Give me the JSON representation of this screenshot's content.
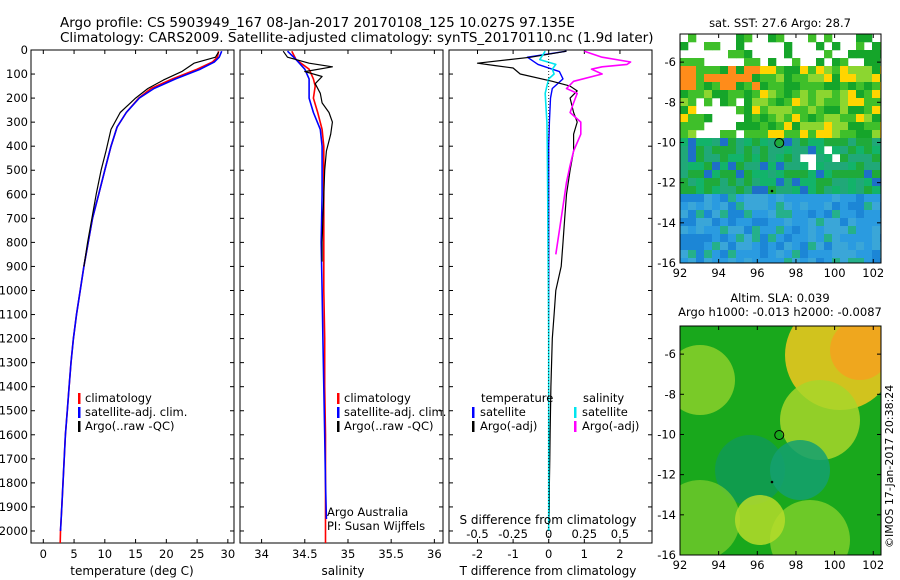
{
  "header": {
    "line1": "Argo profile: CS 5903949_167 08-Jan-2017 20170108_125 10.027S 97.135E",
    "line2": "Climatology: CARS2009. Satellite-adjusted climatology: synTS_20170110.nc (1.9d later)"
  },
  "colors": {
    "climatology": "#ff0000",
    "satellite_adj": "#0000ff",
    "argo": "#000000",
    "salinity_satellite": "#00e5ee",
    "salinity_argo": "#ff00ff"
  },
  "icons": {
    "argo_position_marker": "circle-marker-icon"
  },
  "chart_data": [
    {
      "type": "line",
      "id": "temperature",
      "xlabel": "temperature (deg C)",
      "xlim": [
        -2,
        31
      ],
      "xticks": [
        0,
        5,
        10,
        15,
        20,
        25,
        30
      ],
      "ylim": [
        0,
        2050
      ],
      "yinvert": true,
      "yticks": [
        0,
        100,
        200,
        300,
        400,
        500,
        600,
        700,
        800,
        900,
        1000,
        1100,
        1200,
        1300,
        1400,
        1500,
        1600,
        1700,
        1800,
        1900,
        2000
      ],
      "legend": [
        "climatology",
        "satellite-adj. clim.",
        "Argo(..raw -QC)"
      ],
      "series": [
        {
          "name": "climatology",
          "color": "#ff0000",
          "width": 1.6,
          "points": [
            [
              28.5,
              5
            ],
            [
              28.3,
              30
            ],
            [
              27.5,
              50
            ],
            [
              25,
              80
            ],
            [
              21,
              120
            ],
            [
              17.5,
              160
            ],
            [
              15.5,
              200
            ],
            [
              13.5,
              260
            ],
            [
              12,
              320
            ],
            [
              11,
              400
            ],
            [
              10,
              500
            ],
            [
              9,
              600
            ],
            [
              8,
              700
            ],
            [
              7.3,
              800
            ],
            [
              6.6,
              900
            ],
            [
              6,
              1000
            ],
            [
              5.4,
              1100
            ],
            [
              4.9,
              1200
            ],
            [
              4.5,
              1300
            ],
            [
              4.2,
              1400
            ],
            [
              3.9,
              1500
            ],
            [
              3.6,
              1600
            ],
            [
              3.4,
              1700
            ],
            [
              3.2,
              1800
            ],
            [
              3,
              1900
            ],
            [
              2.8,
              2000
            ],
            [
              2.75,
              2050
            ]
          ]
        },
        {
          "name": "satellite-adj. clim.",
          "color": "#0000ff",
          "width": 1.6,
          "points": [
            [
              29,
              5
            ],
            [
              28.6,
              30
            ],
            [
              27.8,
              50
            ],
            [
              25.5,
              80
            ],
            [
              21.5,
              120
            ],
            [
              18,
              160
            ],
            [
              15.6,
              200
            ],
            [
              13.5,
              260
            ],
            [
              12,
              320
            ],
            [
              11,
              400
            ],
            [
              10,
              500
            ],
            [
              9,
              600
            ],
            [
              8,
              700
            ],
            [
              7.3,
              800
            ],
            [
              6.6,
              900
            ],
            [
              6,
              1000
            ],
            [
              5.4,
              1100
            ],
            [
              4.9,
              1200
            ],
            [
              4.5,
              1300
            ],
            [
              4.2,
              1400
            ],
            [
              3.9,
              1500
            ],
            [
              3.6,
              1600
            ],
            [
              3.4,
              1700
            ],
            [
              3.2,
              1800
            ],
            [
              3,
              1900
            ],
            [
              2.8,
              2000
            ]
          ]
        },
        {
          "name": "Argo(..raw -QC)",
          "color": "#000000",
          "width": 1.2,
          "points": [
            [
              28.5,
              8
            ],
            [
              28,
              30
            ],
            [
              24.5,
              55
            ],
            [
              22.5,
              90
            ],
            [
              19.5,
              125
            ],
            [
              17,
              160
            ],
            [
              15,
              200
            ],
            [
              12.5,
              260
            ],
            [
              11,
              330
            ],
            [
              10.2,
              420
            ],
            [
              9.4,
              500
            ],
            [
              8.6,
              600
            ],
            [
              7.9,
              700
            ],
            [
              7.2,
              800
            ],
            [
              6.6,
              900
            ]
          ]
        }
      ]
    },
    {
      "type": "line",
      "id": "salinity",
      "xlabel": "salinity",
      "xlim": [
        33.75,
        36.1
      ],
      "xticks": [
        34,
        34.5,
        35,
        35.5,
        36
      ],
      "ylim": [
        0,
        2050
      ],
      "yinvert": true,
      "legend": [
        "climatology",
        "satellite-adj. clim.",
        "Argo(..raw -QC)"
      ],
      "annotation": [
        "Argo Australia",
        "PI: Susan Wijffels"
      ],
      "series": [
        {
          "name": "climatology",
          "color": "#ff0000",
          "width": 1.6,
          "points": [
            [
              34.35,
              5
            ],
            [
              34.4,
              40
            ],
            [
              34.55,
              80
            ],
            [
              34.6,
              120
            ],
            [
              34.62,
              150
            ],
            [
              34.6,
              200
            ],
            [
              34.65,
              260
            ],
            [
              34.7,
              330
            ],
            [
              34.72,
              400
            ],
            [
              34.72,
              600
            ],
            [
              34.72,
              800
            ],
            [
              34.72,
              1000
            ],
            [
              34.73,
              1200
            ],
            [
              34.73,
              1400
            ],
            [
              34.74,
              1600
            ],
            [
              34.74,
              1800
            ],
            [
              34.74,
              2000
            ],
            [
              34.74,
              2050
            ]
          ]
        },
        {
          "name": "satellite-adj. clim.",
          "color": "#0000ff",
          "width": 1.6,
          "points": [
            [
              34.3,
              5
            ],
            [
              34.4,
              40
            ],
            [
              34.5,
              80
            ],
            [
              34.55,
              120
            ],
            [
              34.55,
              150
            ],
            [
              34.55,
              200
            ],
            [
              34.6,
              260
            ],
            [
              34.68,
              330
            ],
            [
              34.7,
              400
            ],
            [
              34.7,
              600
            ],
            [
              34.69,
              800
            ],
            [
              34.7,
              1000
            ],
            [
              34.71,
              1200
            ],
            [
              34.72,
              1400
            ],
            [
              34.73,
              1600
            ],
            [
              34.74,
              1800
            ],
            [
              34.75,
              1950
            ]
          ]
        },
        {
          "name": "Argo(..raw -QC)",
          "color": "#000000",
          "width": 1.2,
          "points": [
            [
              34.25,
              5
            ],
            [
              34.3,
              30
            ],
            [
              34.55,
              55
            ],
            [
              34.82,
              70
            ],
            [
              34.5,
              90
            ],
            [
              34.7,
              110
            ],
            [
              34.62,
              140
            ],
            [
              34.68,
              180
            ],
            [
              34.7,
              220
            ],
            [
              34.78,
              260
            ],
            [
              34.82,
              300
            ],
            [
              34.8,
              350
            ],
            [
              34.75,
              420
            ],
            [
              34.73,
              500
            ],
            [
              34.72,
              600
            ],
            [
              34.71,
              700
            ],
            [
              34.7,
              800
            ],
            [
              34.7,
              880
            ]
          ]
        }
      ]
    },
    {
      "type": "line",
      "id": "differences",
      "xlabel": "T difference from climatology",
      "xlabel_top": "S difference from climatology",
      "xlim": [
        -2.8,
        2.9
      ],
      "xticks": [
        -2,
        -1,
        0,
        1,
        2
      ],
      "xticks_s_labels": [
        "-0.5",
        "-0.25",
        "0",
        "0.25",
        "0.5"
      ],
      "ylim": [
        0,
        2050
      ],
      "yinvert": true,
      "legend_headers": [
        "temperature",
        "salinity"
      ],
      "legend": [
        "satellite",
        "Argo(-adj)",
        "satellite",
        "Argo(-adj)"
      ],
      "series": [
        {
          "name": "temperature satellite",
          "color": "#0000ff",
          "width": 1.4,
          "points": [
            [
              0.5,
              5
            ],
            [
              -0.6,
              30
            ],
            [
              -0.3,
              60
            ],
            [
              0.3,
              90
            ],
            [
              0.4,
              120
            ],
            [
              0.1,
              160
            ],
            [
              0.05,
              200
            ],
            [
              0.02,
              300
            ],
            [
              0,
              400
            ],
            [
              0,
              600
            ],
            [
              0,
              800
            ],
            [
              0,
              1000
            ],
            [
              0,
              1200
            ],
            [
              0,
              1400
            ],
            [
              0,
              1600
            ],
            [
              0,
              1800
            ],
            [
              0,
              2000
            ]
          ]
        },
        {
          "name": "temperature Argo(-adj)",
          "color": "#000000",
          "width": 1.2,
          "points": [
            [
              0.5,
              5
            ],
            [
              -0.5,
              30
            ],
            [
              -2,
              55
            ],
            [
              -1.5,
              65
            ],
            [
              -1,
              75
            ],
            [
              -0.8,
              100
            ],
            [
              0.1,
              130
            ],
            [
              0.6,
              150
            ],
            [
              0.8,
              170
            ],
            [
              0.6,
              200
            ],
            [
              0.7,
              260
            ],
            [
              0.8,
              300
            ],
            [
              0.7,
              350
            ],
            [
              0.7,
              420
            ],
            [
              0.6,
              500
            ],
            [
              0.5,
              600
            ],
            [
              0.45,
              700
            ],
            [
              0.4,
              800
            ],
            [
              0.35,
              900
            ],
            [
              0.2,
              1000
            ],
            [
              0.15,
              1100
            ],
            [
              0.1,
              1200
            ],
            [
              0.08,
              1300
            ],
            [
              0.06,
              1400
            ],
            [
              0.05,
              1500
            ],
            [
              0.04,
              1600
            ],
            [
              0.03,
              1700
            ],
            [
              0.02,
              1800
            ],
            [
              0.02,
              1900
            ],
            [
              0,
              2000
            ]
          ]
        },
        {
          "name": "salinity satellite",
          "color": "#00e5ee",
          "width": 1.6,
          "points": [
            [
              -0.1,
              5
            ],
            [
              -0.25,
              40
            ],
            [
              0.2,
              60
            ],
            [
              0.1,
              80
            ],
            [
              0.15,
              100
            ],
            [
              0,
              120
            ],
            [
              -0.05,
              150
            ],
            [
              -0.1,
              180
            ],
            [
              -0.08,
              230
            ],
            [
              -0.05,
              300
            ],
            [
              -0.04,
              400
            ],
            [
              -0.03,
              600
            ],
            [
              -0.02,
              800
            ],
            [
              -0.01,
              1000
            ],
            [
              0,
              1200
            ],
            [
              0,
              1400
            ],
            [
              0,
              1600
            ],
            [
              0,
              1800
            ],
            [
              0,
              2000
            ]
          ]
        },
        {
          "name": "salinity Argo(-adj)",
          "color": "#ff00ff",
          "width": 1.6,
          "points": [
            [
              1,
              5
            ],
            [
              1.5,
              30
            ],
            [
              2.3,
              50
            ],
            [
              2.2,
              60
            ],
            [
              1.5,
              70
            ],
            [
              1.2,
              80
            ],
            [
              1.5,
              100
            ],
            [
              0.7,
              130
            ],
            [
              0.5,
              160
            ],
            [
              0.8,
              180
            ],
            [
              0.7,
              220
            ],
            [
              0.6,
              260
            ],
            [
              0.9,
              300
            ],
            [
              0.9,
              350
            ],
            [
              0.7,
              420
            ],
            [
              0.6,
              480
            ],
            [
              0.5,
              550
            ],
            [
              0.4,
              650
            ],
            [
              0.3,
              750
            ],
            [
              0.2,
              850
            ]
          ]
        }
      ]
    },
    {
      "type": "heatmap",
      "id": "sst_map",
      "title": "sat. SST: 27.6  Argo: 28.7",
      "xticks": [
        92,
        94,
        96,
        98,
        100,
        102
      ],
      "yticks": [
        -6,
        -8,
        -10,
        -12,
        -14,
        -16
      ],
      "xlim": [
        92,
        102.4
      ],
      "ylim": [
        -16,
        -4.6
      ],
      "argo_position": [
        97.135,
        -10.027
      ]
    },
    {
      "type": "heatmap",
      "id": "sla_map",
      "title": "Altim. SLA: 0.039",
      "subtitle": "Argo h1000: -0.013  h2000: -0.0087",
      "xticks": [
        92,
        94,
        96,
        98,
        100,
        102
      ],
      "yticks": [
        -6,
        -8,
        -10,
        -12,
        -14,
        -16
      ],
      "xlim": [
        92,
        102.4
      ],
      "ylim": [
        -16,
        -4.6
      ],
      "argo_position": [
        97.135,
        -10.027
      ]
    }
  ],
  "footer_stamp": "©IMOS 17-Jan-2017 20:38:24"
}
